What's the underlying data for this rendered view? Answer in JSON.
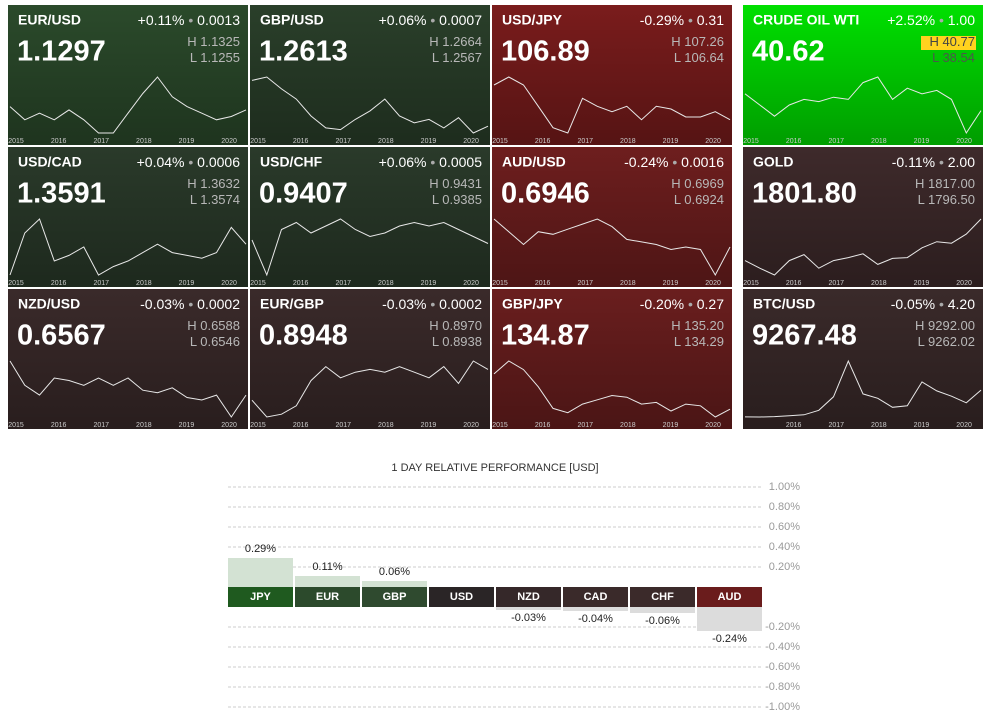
{
  "labels": {
    "high": "H",
    "low": "L"
  },
  "tiles": [
    {
      "name": "EUR/USD",
      "change": "+0.11%",
      "amount": "0.0013",
      "price": "1.1297",
      "high": "1.1325",
      "low": "1.1255",
      "color": "#2b4a2b",
      "years": [
        2015,
        2016,
        2017,
        2018,
        2019,
        2020
      ],
      "spark": [
        1.14,
        1.1,
        1.12,
        1.1,
        1.13,
        1.1,
        1.06,
        1.06,
        1.12,
        1.18,
        1.23,
        1.17,
        1.14,
        1.12,
        1.1,
        1.11,
        1.13
      ]
    },
    {
      "name": "GBP/USD",
      "change": "+0.06%",
      "amount": "0.0007",
      "price": "1.2613",
      "high": "1.2664",
      "low": "1.2567",
      "color": "#2a3f2a",
      "years": [
        2015,
        2016,
        2017,
        2018,
        2019,
        2020
      ],
      "spark": [
        1.53,
        1.55,
        1.48,
        1.42,
        1.32,
        1.25,
        1.24,
        1.3,
        1.35,
        1.42,
        1.32,
        1.28,
        1.3,
        1.25,
        1.31,
        1.22,
        1.26
      ]
    },
    {
      "name": "USD/JPY",
      "change": "-0.29%",
      "amount": "0.31",
      "price": "106.89",
      "high": "107.26",
      "low": "106.64",
      "color": "#7a1c1c",
      "years": [
        2015,
        2016,
        2017,
        2018,
        2019,
        2020
      ],
      "spark": [
        120,
        123,
        120,
        112,
        104,
        102,
        115,
        112,
        110,
        112,
        107,
        112,
        111,
        108,
        108,
        110,
        107
      ]
    },
    {
      "name": "CRUDE OIL WTI",
      "change": "+2.52%",
      "amount": "1.00",
      "price": "40.62",
      "high": "40.77",
      "low": "38.54",
      "color": "#00e000",
      "high_highlight": "#ffd21f",
      "years": [
        2015,
        2016,
        2017,
        2018,
        2019,
        2020
      ],
      "spark": [
        55,
        45,
        35,
        45,
        50,
        48,
        52,
        50,
        65,
        70,
        50,
        60,
        55,
        58,
        50,
        20,
        40
      ]
    },
    {
      "name": "USD/CAD",
      "change": "+0.04%",
      "amount": "0.0006",
      "price": "1.3591",
      "high": "1.3632",
      "low": "1.3574",
      "color": "#2a3a2a",
      "years": [
        2015,
        2016,
        2017,
        2018,
        2019,
        2020
      ],
      "spark": [
        1.25,
        1.4,
        1.45,
        1.3,
        1.32,
        1.35,
        1.25,
        1.28,
        1.3,
        1.33,
        1.36,
        1.33,
        1.32,
        1.31,
        1.33,
        1.42,
        1.36
      ]
    },
    {
      "name": "USD/CHF",
      "change": "+0.06%",
      "amount": "0.0005",
      "price": "0.9407",
      "high": "0.9431",
      "low": "0.9385",
      "color": "#2a3a2a",
      "years": [
        2015,
        2016,
        2017,
        2018,
        2019,
        2020
      ],
      "spark": [
        0.95,
        0.85,
        0.98,
        1.0,
        0.97,
        0.99,
        1.01,
        0.98,
        0.96,
        0.97,
        0.99,
        1.0,
        0.99,
        1.0,
        0.98,
        0.96,
        0.94
      ]
    },
    {
      "name": "AUD/USD",
      "change": "-0.24%",
      "amount": "0.0016",
      "price": "0.6946",
      "high": "0.6969",
      "low": "0.6924",
      "color": "#6e1e1e",
      "years": [
        2015,
        2016,
        2017,
        2018,
        2019,
        2020
      ],
      "spark": [
        0.8,
        0.75,
        0.7,
        0.75,
        0.74,
        0.76,
        0.78,
        0.8,
        0.77,
        0.72,
        0.71,
        0.7,
        0.68,
        0.69,
        0.68,
        0.58,
        0.69
      ]
    },
    {
      "name": "GOLD",
      "change": "-0.11%",
      "amount": "2.00",
      "price": "1801.80",
      "high": "1817.00",
      "low": "1796.50",
      "color": "#3e2a2b",
      "years": [
        2015,
        2016,
        2017,
        2018,
        2019,
        2020
      ],
      "spark": [
        1250,
        1150,
        1060,
        1250,
        1330,
        1150,
        1250,
        1290,
        1340,
        1200,
        1280,
        1290,
        1420,
        1500,
        1480,
        1600,
        1800
      ]
    },
    {
      "name": "NZD/USD",
      "change": "-0.03%",
      "amount": "0.0002",
      "price": "0.6567",
      "high": "0.6588",
      "low": "0.6546",
      "color": "#3a2a2a",
      "years": [
        2015,
        2016,
        2017,
        2018,
        2019,
        2020
      ],
      "spark": [
        0.8,
        0.7,
        0.66,
        0.73,
        0.72,
        0.7,
        0.73,
        0.7,
        0.73,
        0.68,
        0.67,
        0.69,
        0.65,
        0.64,
        0.66,
        0.57,
        0.66
      ]
    },
    {
      "name": "EUR/GBP",
      "change": "-0.03%",
      "amount": "0.0002",
      "price": "0.8948",
      "high": "0.8970",
      "low": "0.8938",
      "color": "#3a2a2a",
      "years": [
        2015,
        2016,
        2017,
        2018,
        2019,
        2020
      ],
      "spark": [
        0.78,
        0.72,
        0.73,
        0.76,
        0.85,
        0.9,
        0.86,
        0.88,
        0.89,
        0.88,
        0.9,
        0.88,
        0.86,
        0.9,
        0.84,
        0.92,
        0.89
      ]
    },
    {
      "name": "GBP/JPY",
      "change": "-0.20%",
      "amount": "0.27",
      "price": "134.87",
      "high": "135.20",
      "low": "134.29",
      "color": "#6a1e1e",
      "years": [
        2015,
        2016,
        2017,
        2018,
        2019,
        2020
      ],
      "spark": [
        175,
        190,
        180,
        160,
        135,
        130,
        140,
        145,
        150,
        148,
        140,
        142,
        132,
        140,
        138,
        125,
        134
      ]
    },
    {
      "name": "BTC/USD",
      "change": "-0.05%",
      "amount": "4.20",
      "price": "9267.48",
      "high": "9292.00",
      "low": "9262.02",
      "color": "#3a2a2a",
      "years": [
        2016,
        2017,
        2018,
        2019,
        2020
      ],
      "spark": [
        300,
        250,
        400,
        700,
        1000,
        2500,
        7000,
        19000,
        8000,
        6500,
        3500,
        4000,
        12000,
        9000,
        7200,
        5000,
        9267
      ]
    }
  ],
  "chart_data": {
    "type": "bar",
    "title": "1 DAY RELATIVE PERFORMANCE  [USD]",
    "categories": [
      "JPY",
      "EUR",
      "GBP",
      "USD",
      "NZD",
      "CAD",
      "CHF",
      "AUD"
    ],
    "values": [
      0.29,
      0.11,
      0.06,
      0,
      -0.03,
      -0.04,
      -0.06,
      -0.24
    ],
    "value_labels": [
      "0.29%",
      "0.11%",
      "0.06%",
      null,
      "-0.03%",
      "-0.04%",
      "-0.06%",
      "-0.24%"
    ],
    "category_colors": [
      "#1f5a1f",
      "#2c4a2c",
      "#2f4a2f",
      "#2a2526",
      "#352829",
      "#3a2a2a",
      "#3b2a2a",
      "#6a1c1c"
    ],
    "positive_color": "#d3e2d3",
    "negative_color": "#dcdcdc",
    "ylim": [
      -1,
      1
    ],
    "yticks": [
      {
        "value": 1,
        "label": "1.00%"
      },
      {
        "value": 0.8,
        "label": "0.80%"
      },
      {
        "value": 0.6,
        "label": "0.60%"
      },
      {
        "value": 0.4,
        "label": "0.40%"
      },
      {
        "value": 0.2,
        "label": "0.20%"
      },
      {
        "value": -0.2,
        "label": "-0.20%"
      },
      {
        "value": -0.4,
        "label": "-0.40%"
      },
      {
        "value": -0.6,
        "label": "-0.60%"
      },
      {
        "value": -0.8,
        "label": "-0.80%"
      },
      {
        "value": -1,
        "label": "-1.00%"
      }
    ],
    "grid": true
  }
}
